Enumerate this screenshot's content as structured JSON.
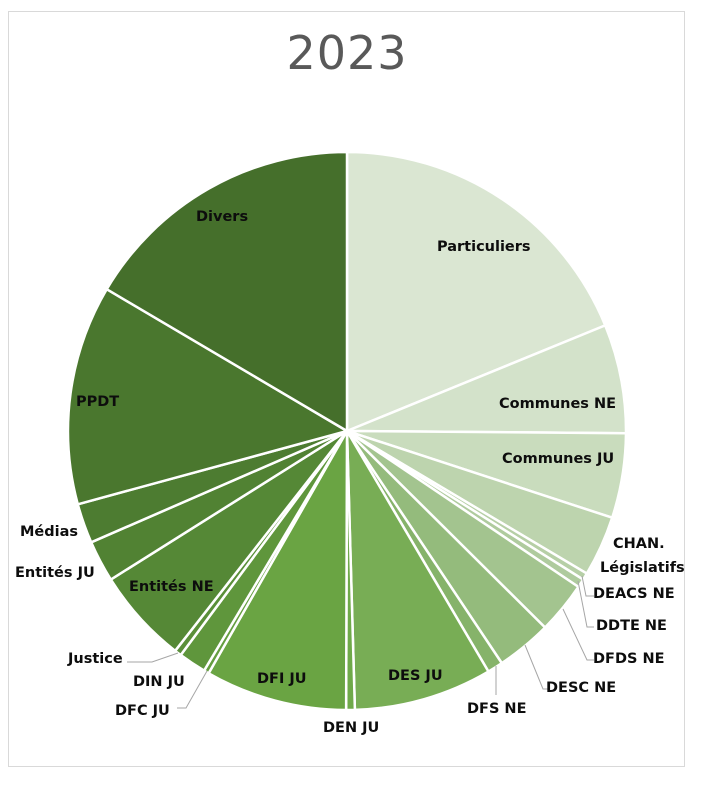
{
  "chart_data": {
    "type": "pie",
    "title": "2023",
    "start_angle_deg": 0,
    "direction": "clockwise",
    "legend": "none (data labels on/near slices)",
    "unit": "share of total (%), estimated from slice angles",
    "categories": [
      "Particuliers",
      "Communes NE",
      "Communes JU",
      "CHAN. Législatifs",
      "DEACS NE",
      "DDTE NE",
      "DFDS NE",
      "DESC NE",
      "DFS NE",
      "DES JU",
      "DEN JU",
      "DFI JU",
      "DFC JU",
      "DIN JU",
      "Justice",
      "Entités NE",
      "Entités JU",
      "Médias",
      "PPDT",
      "Divers"
    ],
    "values": [
      18.8,
      6.3,
      4.9,
      3.5,
      0.4,
      0.5,
      3.0,
      3.2,
      0.9,
      8.0,
      0.5,
      8.2,
      0.3,
      1.6,
      0.4,
      5.5,
      2.4,
      2.3,
      12.7,
      16.5
    ],
    "colors": [
      "#dae6d2",
      "#d3e2ca",
      "#c9dcbd",
      "#bdd4ae",
      "#b6cfa6",
      "#afcb9e",
      "#a3c48f",
      "#94bb7c",
      "#86b36a",
      "#78ad55",
      "#6fa94a",
      "#6aa443",
      "#659e40",
      "#5f963c",
      "#5a8f39",
      "#558836",
      "#518233",
      "#4d7c31",
      "#4a772e",
      "#456f2b"
    ]
  },
  "labels": {
    "particuliers": "Particuliers",
    "communes_ne": "Communes NE",
    "communes_ju": "Communes JU",
    "chan_1": "CHAN.",
    "chan_2": "Législatifs",
    "deacs": "DEACS NE",
    "ddte": "DDTE NE",
    "dfds": "DFDS NE",
    "desc": "DESC NE",
    "dfs": "DFS NE",
    "des_ju": "DES JU",
    "den_ju": "DEN JU",
    "dfi_ju": "DFI JU",
    "dfc_ju": "DFC JU",
    "din_ju": "DIN JU",
    "justice": "Justice",
    "entites_ne": "Entités NE",
    "entites_ju": "Entités JU",
    "medias": "Médias",
    "ppdt": "PPDT",
    "divers": "Divers"
  }
}
